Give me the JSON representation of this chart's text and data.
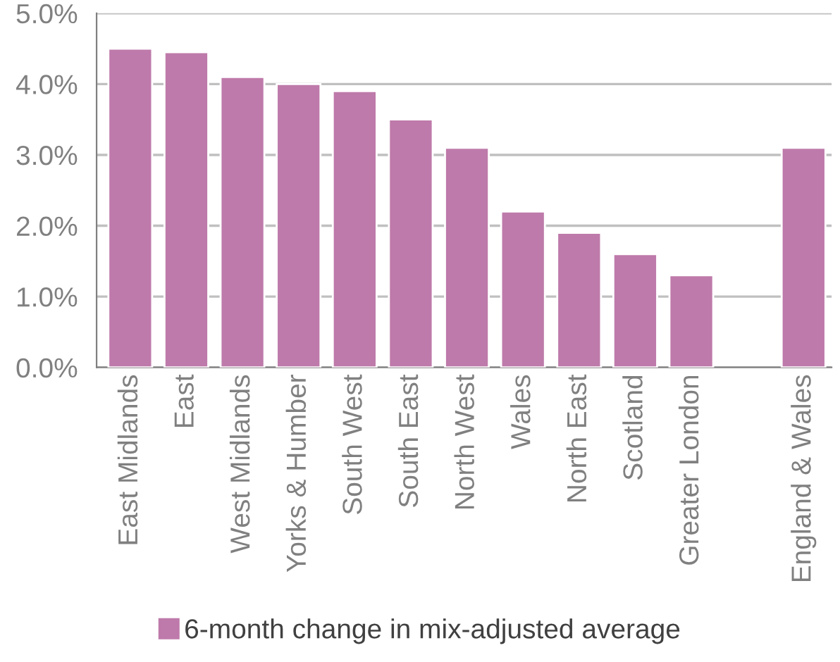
{
  "chart_data": {
    "type": "bar",
    "categories": [
      "East Midlands",
      "East",
      "West Midlands",
      "Yorks & Humber",
      "South West",
      "South East",
      "North West",
      "Wales",
      "North East",
      "Scotland",
      "Greater London",
      null,
      "England & Wales"
    ],
    "series": [
      {
        "name": "6-month change in mix-adjusted average",
        "color": "#be7aaa",
        "values": [
          4.5,
          4.45,
          4.1,
          4.0,
          3.9,
          3.5,
          3.1,
          2.2,
          1.9,
          1.6,
          1.3,
          null,
          3.1
        ]
      }
    ],
    "ylim": [
      0,
      5
    ],
    "yticks": [
      {
        "value": 0,
        "label": "0.0%"
      },
      {
        "value": 1,
        "label": "1.0%"
      },
      {
        "value": 2,
        "label": "2.0%"
      },
      {
        "value": 3,
        "label": "3.0%"
      },
      {
        "value": 4,
        "label": "4.0%"
      },
      {
        "value": 5,
        "label": "5.0%"
      }
    ],
    "grid": "y",
    "legend": "bottom"
  }
}
